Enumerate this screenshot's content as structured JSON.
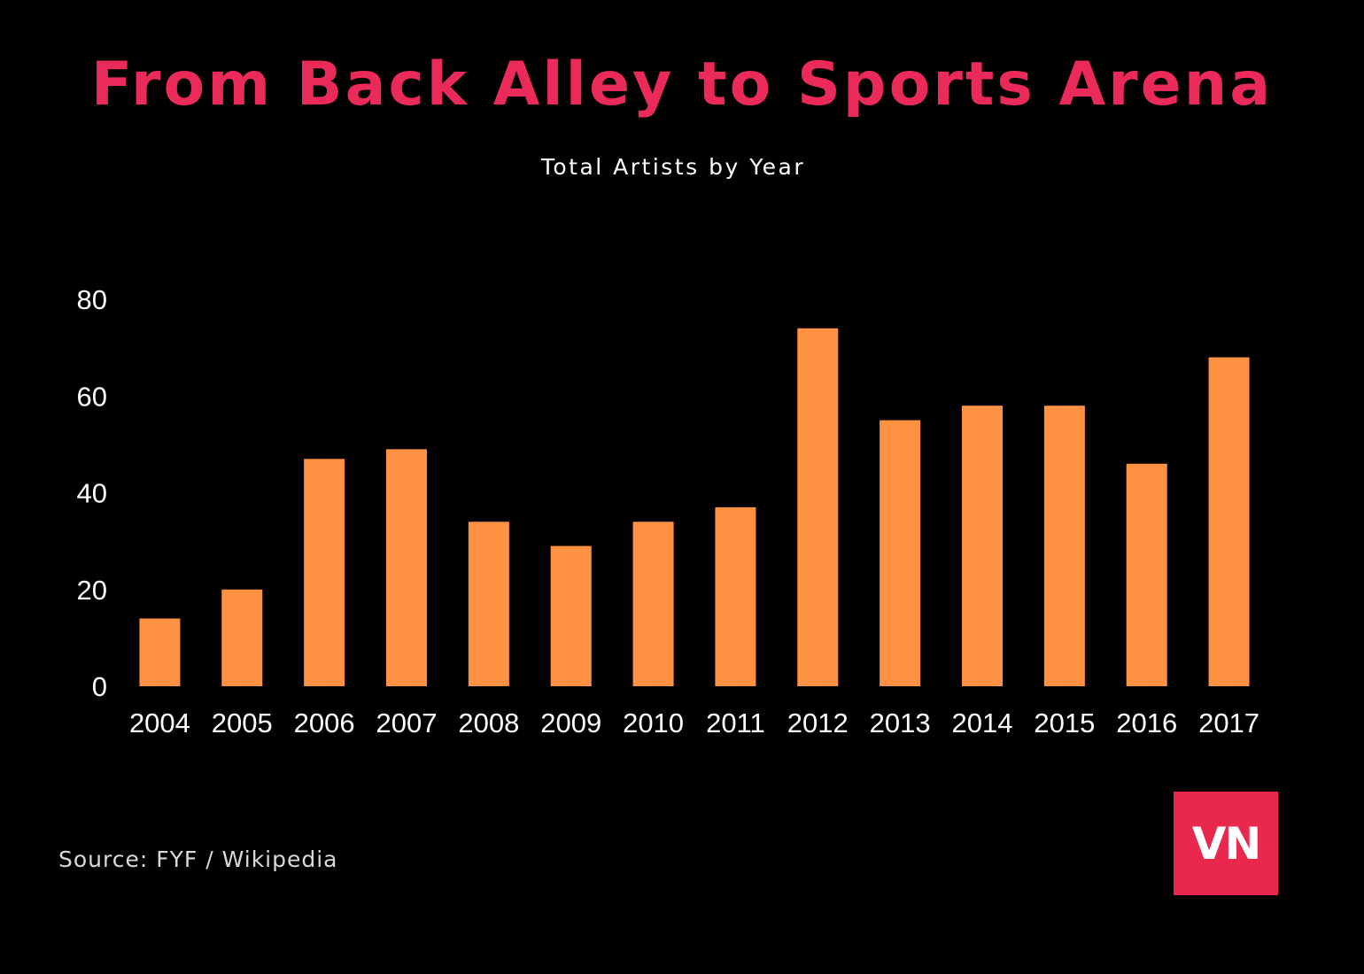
{
  "title": "From Back Alley to Sports Arena",
  "subtitle": "Total Artists by Year",
  "source": "Source: FYF / Wikipedia",
  "logo_text": "VN",
  "colors": {
    "background": "#000000",
    "title": "#ea2b5a",
    "bar": "#ff9142",
    "axis_text": "#ffffff",
    "source_text": "#d9d9d9",
    "logo_bg": "#e8294d"
  },
  "chart_data": {
    "type": "bar",
    "title": "From Back Alley to Sports Arena",
    "subtitle": "Total Artists by Year",
    "xlabel": "",
    "ylabel": "",
    "categories": [
      "2004",
      "2005",
      "2006",
      "2007",
      "2008",
      "2009",
      "2010",
      "2011",
      "2012",
      "2013",
      "2014",
      "2015",
      "2016",
      "2017"
    ],
    "values": [
      14,
      20,
      47,
      49,
      34,
      29,
      34,
      37,
      74,
      55,
      58,
      58,
      46,
      68
    ],
    "ylim": [
      0,
      80
    ],
    "yticks": [
      0,
      20,
      40,
      60,
      80
    ],
    "grid": false,
    "legend": "none"
  }
}
